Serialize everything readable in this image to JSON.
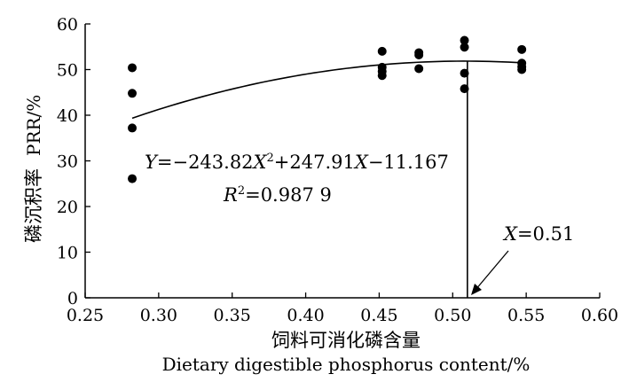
{
  "chart_data": {
    "type": "scatter",
    "xlabel_cn": "饲料可消化磷含量",
    "xlabel_en": "Dietary digestible phosphorus content/%",
    "ylabel_cn": "磷沉积率",
    "ylabel_en": "PRR/%",
    "xlim": [
      0.25,
      0.6
    ],
    "ylim": [
      0,
      60
    ],
    "x_ticks": [
      "0.25",
      "0.30",
      "0.35",
      "0.40",
      "0.45",
      "0.50",
      "0.55",
      "0.60"
    ],
    "y_ticks": [
      "0",
      "10",
      "20",
      "30",
      "40",
      "50",
      "60"
    ],
    "grid": false,
    "points": [
      {
        "x": 0.282,
        "y": 50.4
      },
      {
        "x": 0.282,
        "y": 44.8
      },
      {
        "x": 0.282,
        "y": 37.2
      },
      {
        "x": 0.282,
        "y": 26.1
      },
      {
        "x": 0.452,
        "y": 54.0
      },
      {
        "x": 0.452,
        "y": 50.5
      },
      {
        "x": 0.452,
        "y": 49.6
      },
      {
        "x": 0.452,
        "y": 48.7
      },
      {
        "x": 0.477,
        "y": 53.7
      },
      {
        "x": 0.477,
        "y": 53.2
      },
      {
        "x": 0.477,
        "y": 50.2
      },
      {
        "x": 0.508,
        "y": 56.4
      },
      {
        "x": 0.508,
        "y": 54.9
      },
      {
        "x": 0.508,
        "y": 49.2
      },
      {
        "x": 0.508,
        "y": 45.8
      },
      {
        "x": 0.547,
        "y": 54.4
      },
      {
        "x": 0.547,
        "y": 51.4
      },
      {
        "x": 0.547,
        "y": 50.6
      },
      {
        "x": 0.547,
        "y": 50.0
      }
    ],
    "fit": {
      "a": -243.82,
      "b": 247.91,
      "c": -11.167,
      "x_range": [
        0.282,
        0.547
      ]
    },
    "equation_text": {
      "Y": "Y",
      "eq_part1": "=−243.82",
      "X1": "X",
      "sup2": "2",
      "eq_part2": "+247.91",
      "X2": "X",
      "eq_part3": "−11.167"
    },
    "r2_text": {
      "R": "R",
      "sup2": "2",
      "value": "=0.987 9"
    },
    "annotation": {
      "X": "X",
      "value": "=0.51",
      "x": 0.51
    }
  }
}
